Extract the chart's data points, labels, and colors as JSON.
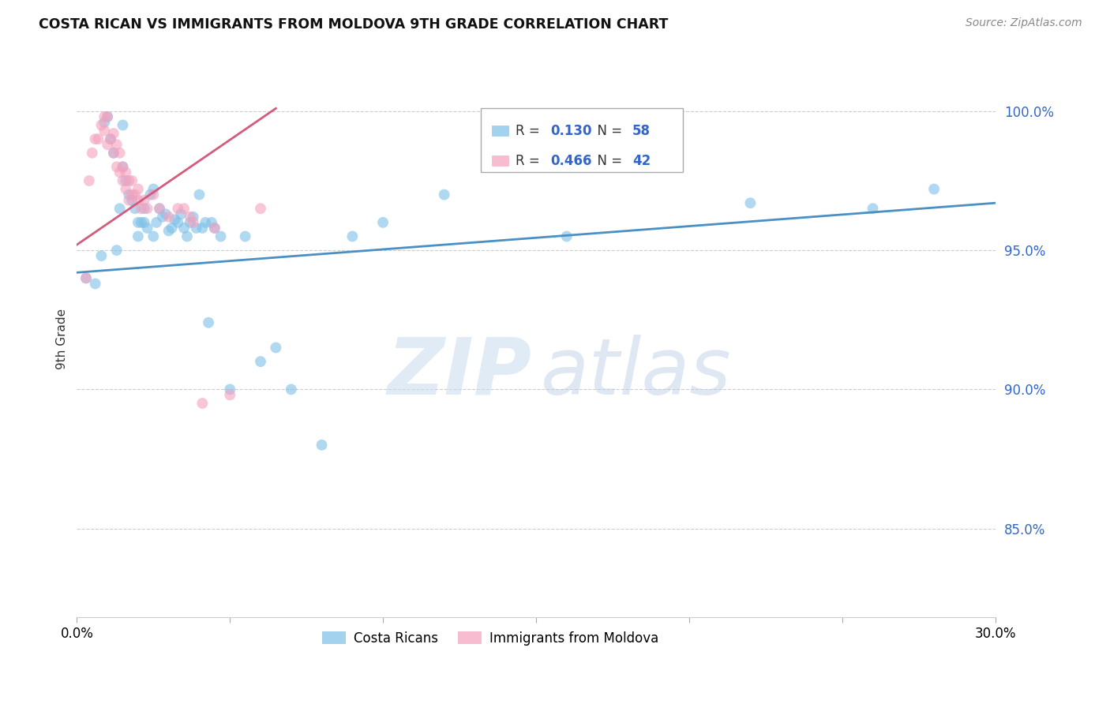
{
  "title": "COSTA RICAN VS IMMIGRANTS FROM MOLDOVA 9TH GRADE CORRELATION CHART",
  "source": "Source: ZipAtlas.com",
  "ylabel": "9th Grade",
  "y_ticks": [
    0.85,
    0.9,
    0.95,
    1.0
  ],
  "y_tick_labels": [
    "85.0%",
    "90.0%",
    "95.0%",
    "100.0%"
  ],
  "x_min": 0.0,
  "x_max": 0.3,
  "y_min": 0.818,
  "y_max": 1.018,
  "legend_blue_r": "0.130",
  "legend_blue_n": "58",
  "legend_pink_r": "0.466",
  "legend_pink_n": "42",
  "blue_color": "#7dbfe8",
  "pink_color": "#f4a0bc",
  "blue_line_color": "#4a90c4",
  "pink_line_color": "#d45b7a",
  "blue_scatter_x": [
    0.003,
    0.006,
    0.008,
    0.009,
    0.01,
    0.011,
    0.012,
    0.013,
    0.014,
    0.015,
    0.015,
    0.016,
    0.017,
    0.018,
    0.019,
    0.02,
    0.02,
    0.021,
    0.022,
    0.022,
    0.023,
    0.024,
    0.025,
    0.025,
    0.026,
    0.027,
    0.028,
    0.029,
    0.03,
    0.031,
    0.032,
    0.033,
    0.034,
    0.035,
    0.036,
    0.037,
    0.038,
    0.039,
    0.04,
    0.041,
    0.042,
    0.043,
    0.044,
    0.045,
    0.047,
    0.05,
    0.055,
    0.06,
    0.065,
    0.07,
    0.08,
    0.09,
    0.1,
    0.12,
    0.16,
    0.22,
    0.26,
    0.28
  ],
  "blue_scatter_y": [
    0.94,
    0.938,
    0.948,
    0.996,
    0.998,
    0.99,
    0.985,
    0.95,
    0.965,
    0.995,
    0.98,
    0.975,
    0.97,
    0.968,
    0.965,
    0.96,
    0.955,
    0.96,
    0.965,
    0.96,
    0.958,
    0.97,
    0.972,
    0.955,
    0.96,
    0.965,
    0.962,
    0.963,
    0.957,
    0.958,
    0.961,
    0.96,
    0.963,
    0.958,
    0.955,
    0.96,
    0.962,
    0.958,
    0.97,
    0.958,
    0.96,
    0.924,
    0.96,
    0.958,
    0.955,
    0.9,
    0.955,
    0.91,
    0.915,
    0.9,
    0.88,
    0.955,
    0.96,
    0.97,
    0.955,
    0.967,
    0.965,
    0.972
  ],
  "pink_scatter_x": [
    0.003,
    0.004,
    0.005,
    0.006,
    0.007,
    0.008,
    0.009,
    0.009,
    0.01,
    0.01,
    0.011,
    0.012,
    0.012,
    0.013,
    0.013,
    0.014,
    0.014,
    0.015,
    0.015,
    0.016,
    0.016,
    0.017,
    0.017,
    0.018,
    0.018,
    0.019,
    0.02,
    0.02,
    0.021,
    0.022,
    0.023,
    0.025,
    0.027,
    0.03,
    0.033,
    0.035,
    0.037,
    0.038,
    0.041,
    0.045,
    0.05,
    0.06
  ],
  "pink_scatter_y": [
    0.94,
    0.975,
    0.985,
    0.99,
    0.99,
    0.995,
    0.993,
    0.998,
    0.988,
    0.998,
    0.99,
    0.985,
    0.992,
    0.98,
    0.988,
    0.978,
    0.985,
    0.975,
    0.98,
    0.972,
    0.978,
    0.968,
    0.975,
    0.97,
    0.975,
    0.97,
    0.968,
    0.972,
    0.965,
    0.968,
    0.965,
    0.97,
    0.965,
    0.962,
    0.965,
    0.965,
    0.962,
    0.96,
    0.895,
    0.958,
    0.898,
    0.965
  ],
  "blue_line_x": [
    0.0,
    0.3
  ],
  "blue_line_y": [
    0.942,
    0.967
  ],
  "pink_line_x": [
    0.0,
    0.065
  ],
  "pink_line_y": [
    0.952,
    1.001
  ]
}
